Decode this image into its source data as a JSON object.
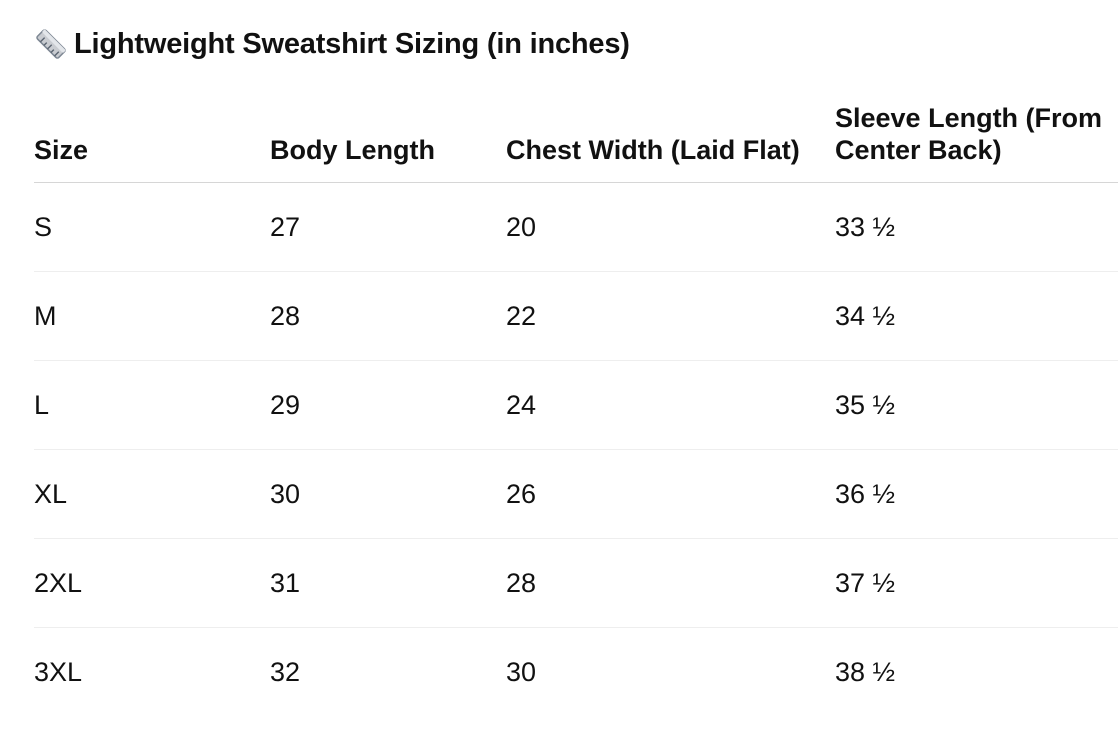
{
  "title": "Lightweight Sweatshirt Sizing (in inches)",
  "title_icon": "ruler-icon",
  "table": {
    "headers": [
      "Size",
      "Body Length",
      "Chest Width (Laid Flat)",
      "Sleeve Length (From Center Back)"
    ],
    "rows": [
      [
        "S",
        "27",
        "20",
        "33 ½"
      ],
      [
        "M",
        "28",
        "22",
        "34 ½"
      ],
      [
        "L",
        "29",
        "24",
        "35 ½"
      ],
      [
        "XL",
        "30",
        "26",
        "36 ½"
      ],
      [
        "2XL",
        "31",
        "28",
        "37 ½"
      ],
      [
        "3XL",
        "32",
        "30",
        "38 ½"
      ]
    ]
  }
}
